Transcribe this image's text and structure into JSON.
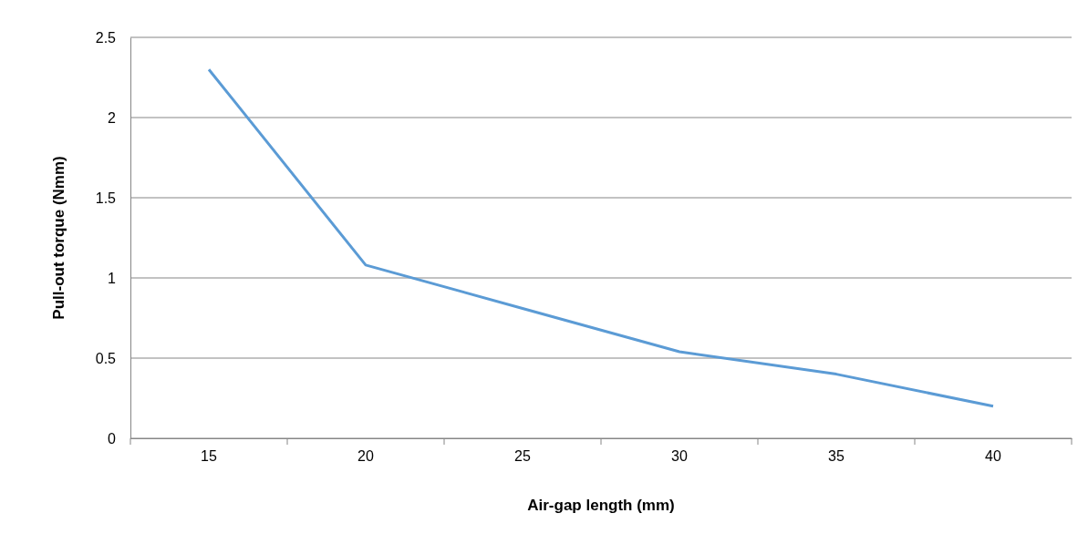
{
  "chart_data": {
    "type": "line",
    "xlabel": "Air-gap length (mm)",
    "ylabel": "Pull-out torque (Nmm)",
    "categories": [
      "15",
      "20",
      "25",
      "30",
      "35",
      "40"
    ],
    "series": [
      {
        "color": "#5b9bd5",
        "values": [
          2.3,
          1.08,
          0.81,
          0.54,
          0.4,
          0.2
        ]
      }
    ],
    "ylim": [
      0,
      2.5
    ],
    "yticks": [
      0,
      0.5,
      1,
      1.5,
      2,
      2.5
    ],
    "grid": "y",
    "legend": false,
    "marker": "none",
    "line_style": "solid"
  }
}
